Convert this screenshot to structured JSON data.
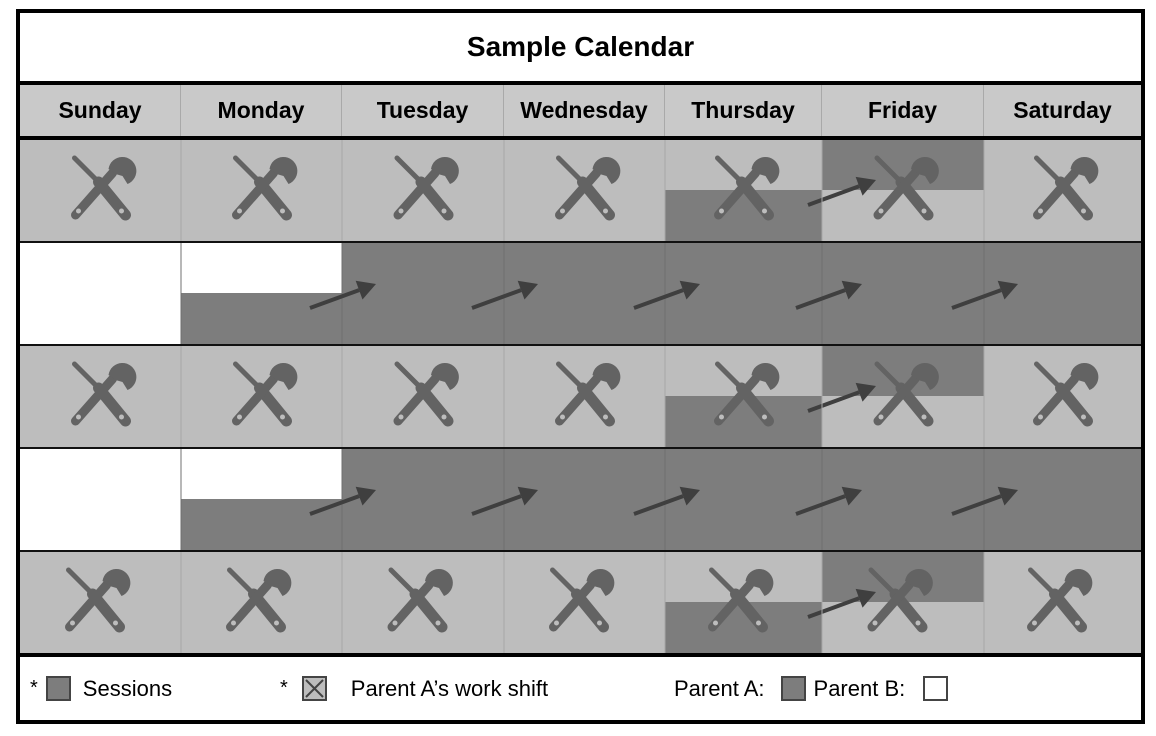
{
  "calendar": {
    "title": "Sample Calendar",
    "days": [
      "Sunday",
      "Monday",
      "Tuesday",
      "Wednesday",
      "Thursday",
      "Friday",
      "Saturday"
    ]
  },
  "weeks": [
    {
      "kind": "work-shift",
      "icon": "tools-icon"
    },
    {
      "kind": "custody"
    },
    {
      "kind": "work-shift",
      "icon": "tools-icon"
    },
    {
      "kind": "custody"
    },
    {
      "kind": "work-shift",
      "icon": "tools-icon"
    }
  ],
  "legend": {
    "star": "*",
    "sessions_label": "Sessions",
    "shift_label": "Parent A’s work shift",
    "parent_a_label": "Parent A:",
    "parent_b_label": "Parent B:"
  },
  "colors": {
    "shift_cell": "#bdbdbd",
    "parent_a": "#7d7d7d",
    "parent_b": "#ffffff",
    "icon": "#636363",
    "arrow": "#3f3f3f"
  }
}
